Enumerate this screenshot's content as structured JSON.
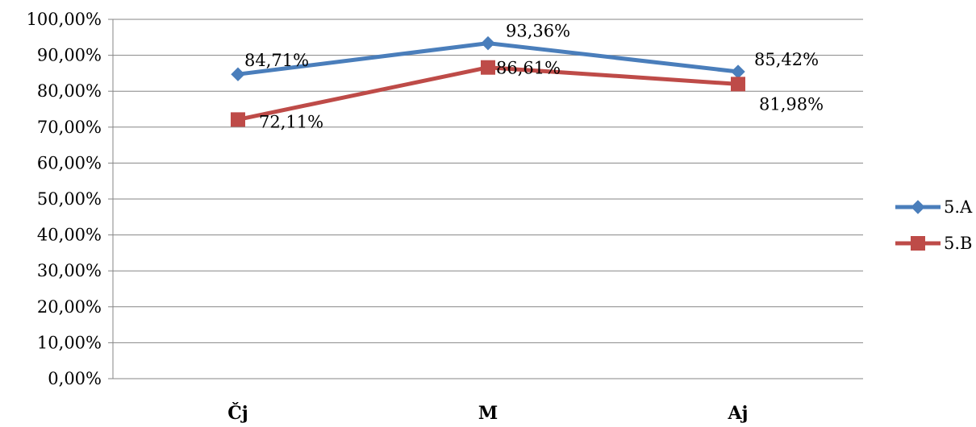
{
  "chart_data": {
    "type": "line",
    "categories": [
      "Čj",
      "M",
      "Aj"
    ],
    "series": [
      {
        "name": "5.A",
        "color": "#4A7EBB",
        "marker": "diamond",
        "values": [
          84.71,
          93.36,
          85.42
        ],
        "labels": [
          "84,71%",
          "93,36%",
          "85,42%"
        ]
      },
      {
        "name": "5.B",
        "color": "#BE4B48",
        "marker": "square",
        "values": [
          72.11,
          86.61,
          81.98
        ],
        "labels": [
          "72,11%",
          "86,61%",
          "81,98%"
        ]
      }
    ],
    "yticks": [
      "0,00%",
      "10,00%",
      "20,00%",
      "30,00%",
      "40,00%",
      "50,00%",
      "60,00%",
      "70,00%",
      "80,00%",
      "90,00%",
      "100,00%"
    ],
    "ylim": [
      0,
      100
    ],
    "grid": true,
    "legend": "right"
  }
}
